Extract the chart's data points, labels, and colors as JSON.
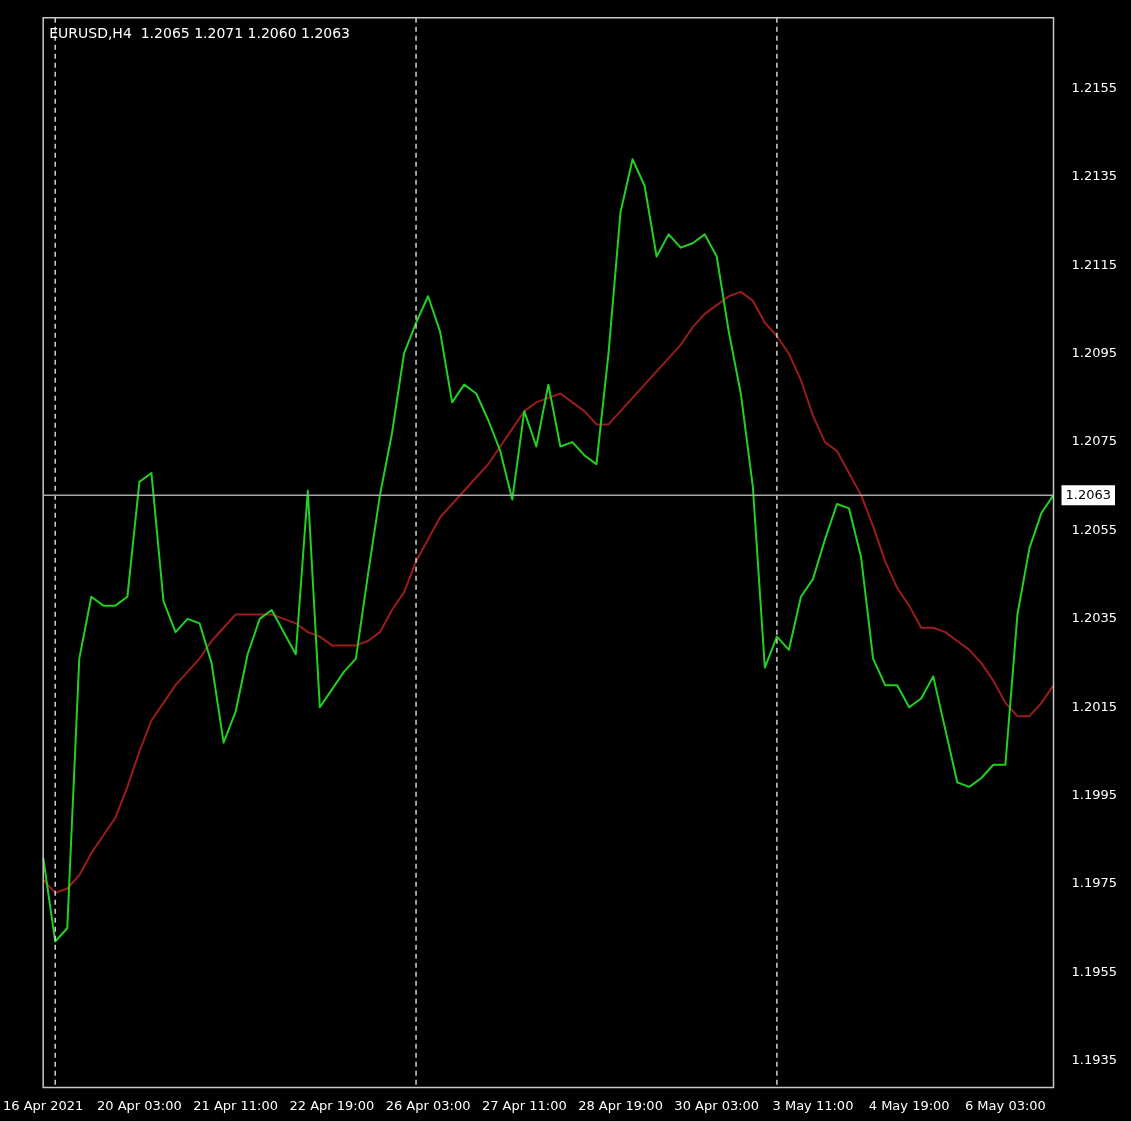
{
  "chart_data": {
    "type": "line",
    "title": "EURUSD,H4  1.2065 1.2071 1.2060 1.2063",
    "categories": [
      "16 Apr 2021",
      null,
      null,
      null,
      null,
      null,
      null,
      null,
      "20 Apr 03:00",
      null,
      null,
      null,
      null,
      null,
      null,
      null,
      "21 Apr 11:00",
      null,
      null,
      null,
      null,
      null,
      null,
      null,
      "22 Apr 19:00",
      null,
      null,
      null,
      null,
      null,
      null,
      null,
      "26 Apr 03:00",
      null,
      null,
      null,
      null,
      null,
      null,
      null,
      "27 Apr 11:00",
      null,
      null,
      null,
      null,
      null,
      null,
      null,
      "28 Apr 19:00",
      null,
      null,
      null,
      null,
      null,
      null,
      null,
      "30 Apr 03:00",
      null,
      null,
      null,
      null,
      null,
      null,
      null,
      "3 May 11:00",
      null,
      null,
      null,
      null,
      null,
      null,
      null,
      "4 May 19:00",
      null,
      null,
      null,
      null,
      null,
      null,
      null,
      "6 May 03:00",
      null,
      null,
      null,
      null
    ],
    "series": [
      {
        "color": "#22d022",
        "values": [
          1.1981,
          1.1962,
          1.1965,
          1.2026,
          1.204,
          1.2038,
          1.2038,
          1.204,
          1.2066,
          1.2068,
          1.2039,
          1.2032,
          1.2035,
          1.2034,
          1.2025,
          1.2007,
          1.2014,
          1.2027,
          1.2035,
          1.2037,
          1.2032,
          1.2027,
          1.2064,
          1.2015,
          1.2019,
          1.2023,
          1.2026,
          1.2045,
          1.2063,
          1.2077,
          1.2095,
          1.2102,
          1.2108,
          1.21,
          1.2084,
          1.2088,
          1.2086,
          1.208,
          1.2073,
          1.2062,
          1.2082,
          1.2074,
          1.2088,
          1.2074,
          1.2075,
          1.2072,
          1.207,
          1.2095,
          1.2127,
          1.2139,
          1.2133,
          1.2117,
          1.2122,
          1.2119,
          1.212,
          1.2122,
          1.2117,
          1.21,
          1.2086,
          1.2065,
          1.2024,
          1.2031,
          1.2028,
          1.204,
          1.2044,
          1.2053,
          1.2061,
          1.206,
          1.2049,
          1.2026,
          1.202,
          1.202,
          1.2015,
          1.2017,
          1.2022,
          1.201,
          1.1998,
          1.1997,
          1.1999,
          1.2002,
          1.2002,
          1.2036,
          1.2051,
          1.2059,
          1.2063
        ]
      },
      {
        "color": "#9a1c1c",
        "values": [
          1.1976,
          1.1973,
          1.1974,
          1.1977,
          1.1982,
          1.1986,
          1.199,
          1.1997,
          1.2005,
          1.2012,
          1.2016,
          1.202,
          1.2023,
          1.2026,
          1.203,
          1.2033,
          1.2036,
          1.2036,
          1.2036,
          1.2036,
          1.2035,
          1.2034,
          1.2032,
          1.2031,
          1.2029,
          1.2029,
          1.2029,
          1.203,
          1.2032,
          1.2037,
          1.2041,
          1.2048,
          1.2053,
          1.2058,
          1.2061,
          1.2064,
          1.2067,
          1.207,
          1.2074,
          1.2078,
          1.2082,
          1.2084,
          1.2085,
          1.2086,
          1.2084,
          1.2082,
          1.2079,
          1.2079,
          1.2082,
          1.2085,
          1.2088,
          1.2091,
          1.2094,
          1.2097,
          1.2101,
          1.2104,
          1.2106,
          1.2108,
          1.2109,
          1.2107,
          1.2102,
          1.2099,
          1.2095,
          1.2089,
          1.2081,
          1.2075,
          1.2073,
          1.2068,
          1.2063,
          1.2056,
          1.2048,
          1.2042,
          1.2038,
          1.2033,
          1.2033,
          1.2032,
          1.203,
          1.2028,
          1.2025,
          1.2021,
          1.2016,
          1.2013,
          1.2013,
          1.2016,
          1.202
        ]
      }
    ],
    "ylim": [
      1.1929,
      1.2171
    ],
    "yticks": [
      1.1935,
      1.1955,
      1.1975,
      1.1995,
      1.2015,
      1.2035,
      1.2055,
      1.2075,
      1.2095,
      1.2115,
      1.2135,
      1.2155
    ],
    "ref_lines": [
      {
        "axis": "y",
        "value": 1.2063,
        "label": "1.2063",
        "color": "#a8a8a8",
        "line_style": "solid"
      }
    ],
    "grid": false,
    "legend": false,
    "marker": "none",
    "line_style": "solid"
  }
}
